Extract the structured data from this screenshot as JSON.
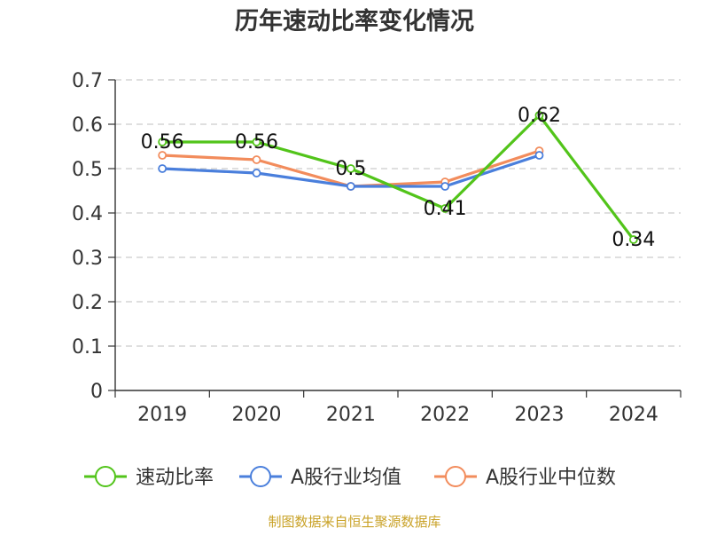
{
  "chart_data": {
    "type": "line",
    "title": "历年速动比率变化情况",
    "categories": [
      "2019",
      "2020",
      "2021",
      "2022",
      "2023",
      "2024"
    ],
    "y_ticks": [
      "0",
      "0.1",
      "0.2",
      "0.3",
      "0.4",
      "0.5",
      "0.6",
      "0.7"
    ],
    "ylim": [
      0,
      0.7
    ],
    "grid": true,
    "legend_position": "bottom",
    "series": [
      {
        "name": "速动比率",
        "color": "#52c41a",
        "values": [
          0.56,
          0.56,
          0.5,
          0.41,
          0.62,
          0.34
        ],
        "labels": [
          "0.56",
          "0.56",
          "0.5",
          "0.41",
          "0.62",
          "0.34"
        ]
      },
      {
        "name": "A股行业均值",
        "color": "#4a7fdc",
        "values": [
          0.5,
          0.49,
          0.46,
          0.46,
          0.53,
          null
        ]
      },
      {
        "name": "A股行业中位数",
        "color": "#f28c5c",
        "values": [
          0.53,
          0.52,
          0.46,
          0.47,
          0.54,
          null
        ]
      }
    ],
    "source": "制图数据来自恒生聚源数据库"
  }
}
